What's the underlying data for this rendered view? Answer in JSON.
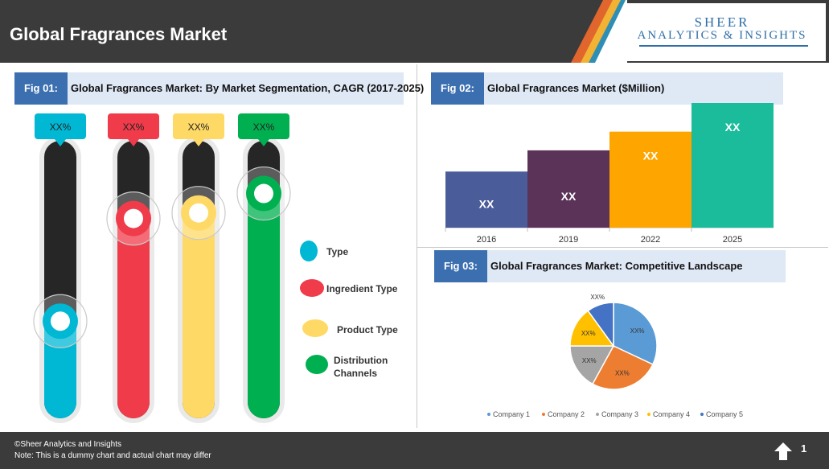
{
  "header": {
    "title": "Global Fragrances Market",
    "brand_line1": "SHEER",
    "brand_line2": "ANALYTICS & INSIGHTS"
  },
  "fig1": {
    "tag": "Fig 01:",
    "title": "Global Fragrances Market: By Market Segmentation, CAGR (2017-2025)",
    "thermometers": [
      {
        "label": "XX%",
        "color": "#00b8d4",
        "level": 0.35
      },
      {
        "label": "XX%",
        "color": "#ef3b4a",
        "level": 0.72
      },
      {
        "label": "XX%",
        "color": "#ffd966",
        "level": 0.74
      },
      {
        "label": "XX%",
        "color": "#00b050",
        "level": 0.81
      }
    ],
    "legend": [
      {
        "label": "Type",
        "color": "#00b8d4"
      },
      {
        "label": "Ingredient Type",
        "color": "#ef3b4a"
      },
      {
        "label": "Product Type",
        "color": "#ffd966"
      },
      {
        "label": "Distribution Channels",
        "color": "#00b050"
      }
    ]
  },
  "fig2": {
    "tag": "Fig 02:",
    "title": "Global Fragrances Market ($Million)"
  },
  "fig3": {
    "tag": "Fig 03:",
    "title": "Global Fragrances Market: Competitive Landscape"
  },
  "chart_data": [
    {
      "type": "bar",
      "categories": [
        "2016",
        "2019",
        "2022",
        "2025"
      ],
      "values": [
        0.45,
        0.62,
        0.77,
        1.0
      ],
      "data_labels": [
        "XX",
        "XX",
        "XX",
        "XX"
      ],
      "colors": [
        "#4a5c9a",
        "#5b3359",
        "#ffa500",
        "#1abc9c"
      ],
      "title": "Global Fragrances Market ($Million)"
    },
    {
      "type": "pie",
      "categories": [
        "Company 1",
        "Company 2",
        "Company 3",
        "Company 4",
        "Company 5"
      ],
      "values": [
        32,
        26,
        17,
        15,
        10
      ],
      "data_labels": [
        "XX%",
        "XX%",
        "XX%",
        "XX%",
        "XX%"
      ],
      "colors": [
        "#5b9bd5",
        "#ed7d31",
        "#a5a5a5",
        "#ffc000",
        "#4472c4"
      ],
      "title": "Global Fragrances Market: Competitive Landscape"
    }
  ],
  "footer": {
    "copyright": "©Sheer Analytics and Insights",
    "note": "Note: This is a dummy chart and actual chart may differ",
    "page": "1"
  }
}
